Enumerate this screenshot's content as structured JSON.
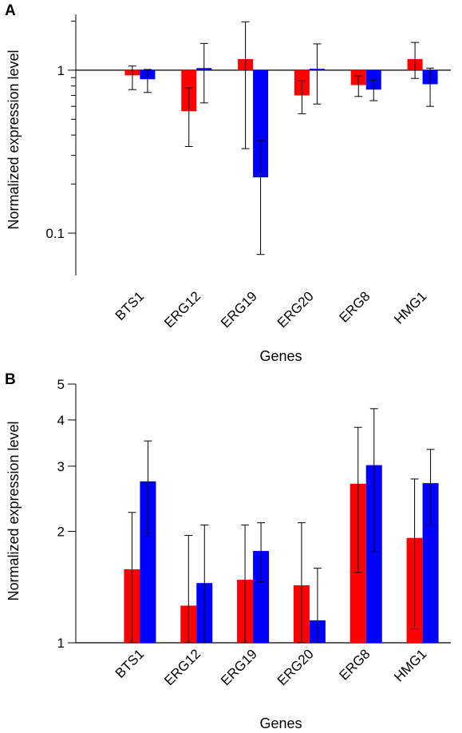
{
  "colors": {
    "series_1": "#ff0000",
    "series_2": "#0000ff",
    "axis": "#000000"
  },
  "chart_data": [
    {
      "panel_label": "A",
      "type": "bar",
      "scale": "log",
      "baseline": 1,
      "xlabel": "Genes",
      "ylabel": "Normalized expression level",
      "ylim": [
        0.055,
        2.2
      ],
      "yticks": [
        0.1,
        1
      ],
      "ytick_labels": [
        "0.1",
        "1"
      ],
      "minor_yticks": [
        0.2,
        0.3,
        0.4,
        0.5,
        0.6,
        0.7,
        0.8,
        0.9,
        2
      ],
      "categories": [
        "BTS1",
        "ERG12",
        "ERG19",
        "ERG20",
        "ERG8",
        "HMG1"
      ],
      "series": [
        {
          "values": [
            0.93,
            0.56,
            1.17,
            0.7,
            0.81,
            1.17
          ],
          "err_low": [
            0.76,
            0.34,
            0.33,
            0.54,
            0.69,
            0.89
          ],
          "err_high": [
            1.06,
            0.78,
            1.98,
            0.86,
            0.92,
            1.48
          ]
        },
        {
          "values": [
            0.88,
            1.03,
            0.22,
            1.02,
            0.76,
            0.82
          ],
          "err_low": [
            0.73,
            0.63,
            0.074,
            0.62,
            0.65,
            0.6
          ],
          "err_high": [
            1.01,
            1.46,
            0.37,
            1.45,
            0.87,
            1.03
          ]
        }
      ]
    },
    {
      "panel_label": "B",
      "type": "bar",
      "scale": "log",
      "baseline": 1,
      "xlabel": "Genes",
      "ylabel": "Normalized expression level",
      "ylim": [
        1,
        5
      ],
      "yticks": [
        1,
        2,
        3,
        4,
        5
      ],
      "ytick_labels": [
        "1",
        "2",
        "3",
        "4",
        "5"
      ],
      "categories": [
        "BTS1",
        "ERG12",
        "ERG19",
        "ERG20",
        "ERG8",
        "HMG1"
      ],
      "series": [
        {
          "values": [
            1.58,
            1.26,
            1.48,
            1.43,
            2.69,
            1.92
          ],
          "err_low": [
            1.0,
            1.0,
            1.0,
            1.0,
            1.55,
            1.09
          ],
          "err_high": [
            2.25,
            1.95,
            2.08,
            2.11,
            3.82,
            2.77
          ]
        },
        {
          "values": [
            2.73,
            1.45,
            1.77,
            1.15,
            3.02,
            2.7
          ],
          "err_low": [
            1.94,
            1.0,
            1.46,
            1.0,
            1.76,
            2.08
          ],
          "err_high": [
            3.51,
            2.08,
            2.11,
            1.59,
            4.29,
            3.33
          ]
        }
      ]
    }
  ]
}
